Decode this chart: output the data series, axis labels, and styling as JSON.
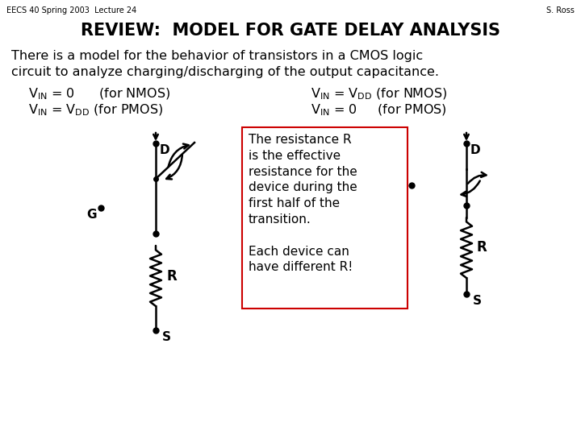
{
  "bg_color": "#ffffff",
  "header_left": "EECS 40 Spring 2003  Lecture 24",
  "header_right": "S. Ross",
  "title": "REVIEW:  MODEL FOR GATE DELAY ANALYSIS",
  "intro_line1": "There is a model for the behavior of transistors in a CMOS logic",
  "intro_line2": "circuit to analyze charging/discharging of the output capacitance.",
  "box_text_line1": "The resistance R",
  "box_text_line2": "is the effective",
  "box_text_line3": "resistance for the",
  "box_text_line4": "device during the",
  "box_text_line5": "first half of the",
  "box_text_line6": "transition.",
  "box_text_line7": "Each device can",
  "box_text_line8": "have different R!",
  "box_border_color": "#cc0000",
  "lw": 1.8
}
